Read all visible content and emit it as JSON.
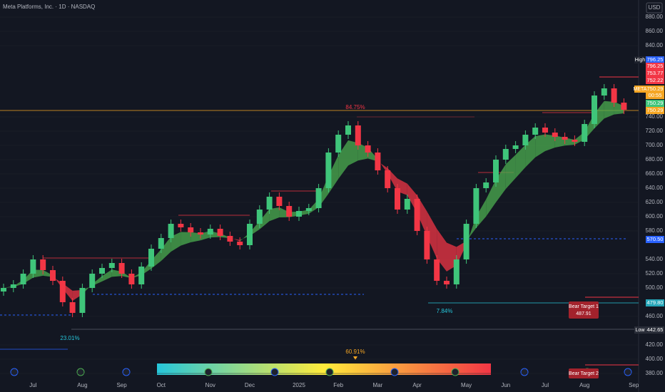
{
  "chart_data": {
    "type": "candlestick",
    "title": "Meta Platforms, Inc. · 1D · NASDAQ",
    "currency": "USD",
    "categories": [
      null,
      null,
      null,
      "Jul",
      null,
      null,
      null,
      null,
      "Aug",
      null,
      null,
      null,
      "Sep",
      null,
      null,
      null,
      "Oct",
      null,
      null,
      null,
      null,
      "Nov",
      null,
      null,
      null,
      "Dec",
      null,
      null,
      null,
      null,
      "2025",
      null,
      null,
      null,
      "Feb",
      null,
      null,
      null,
      "Mar",
      null,
      null,
      null,
      "Apr",
      null,
      null,
      null,
      null,
      "May",
      null,
      null,
      null,
      "Jun",
      null,
      null,
      null,
      "Jul",
      null,
      null,
      null,
      "Aug",
      null,
      null,
      null,
      null,
      "Sep"
    ],
    "open": [
      495,
      500,
      505,
      520,
      540,
      525,
      510,
      480,
      465,
      500,
      520,
      528,
      535,
      520,
      505,
      530,
      555,
      570,
      590,
      585,
      578,
      575,
      583,
      573,
      565,
      560,
      590,
      610,
      628,
      615,
      600,
      608,
      612,
      640,
      690,
      715,
      728,
      700,
      690,
      665,
      640,
      610,
      625,
      580,
      540,
      510,
      505,
      540,
      590,
      640,
      648,
      680,
      695,
      700,
      715,
      725,
      718,
      712,
      708,
      705,
      730,
      770,
      780,
      760,
      null
    ],
    "high": [
      506,
      511,
      526,
      546,
      546,
      531,
      516,
      486,
      506,
      526,
      534,
      541,
      541,
      526,
      536,
      561,
      576,
      596,
      596,
      591,
      584,
      589,
      589,
      579,
      571,
      596,
      616,
      634,
      634,
      621,
      614,
      618,
      646,
      696,
      721,
      734,
      734,
      706,
      696,
      671,
      646,
      631,
      631,
      586,
      546,
      516,
      546,
      596,
      646,
      654,
      686,
      701,
      706,
      721,
      731,
      731,
      724,
      718,
      714,
      736,
      776,
      786,
      786,
      766,
      null
    ],
    "low": [
      489,
      494,
      499,
      514,
      519,
      504,
      474,
      459,
      459,
      494,
      514,
      522,
      514,
      499,
      499,
      524,
      549,
      564,
      579,
      572,
      569,
      569,
      567,
      559,
      554,
      554,
      584,
      604,
      609,
      594,
      594,
      602,
      606,
      634,
      684,
      709,
      694,
      684,
      659,
      634,
      604,
      604,
      574,
      534,
      504,
      499,
      499,
      534,
      584,
      634,
      642,
      674,
      689,
      694,
      709,
      712,
      706,
      702,
      699,
      699,
      724,
      764,
      754,
      744,
      null
    ],
    "close": [
      500,
      505,
      520,
      540,
      525,
      510,
      480,
      465,
      500,
      520,
      528,
      535,
      520,
      505,
      530,
      555,
      570,
      590,
      585,
      578,
      575,
      583,
      573,
      565,
      560,
      590,
      610,
      628,
      615,
      600,
      608,
      612,
      640,
      690,
      715,
      728,
      700,
      690,
      665,
      640,
      610,
      625,
      580,
      540,
      510,
      505,
      540,
      590,
      640,
      648,
      680,
      695,
      700,
      715,
      725,
      718,
      712,
      708,
      705,
      730,
      770,
      780,
      760,
      750,
      null
    ],
    "up_color": "#3fc57a",
    "down_color": "#f23645",
    "ylim": [
      354,
      904
    ],
    "yticks": [
      {
        "value": 880,
        "label": "880.00"
      },
      {
        "value": 860,
        "label": "860.00"
      },
      {
        "value": 840,
        "label": "840.00"
      },
      {
        "value": 740,
        "label": "740.00"
      },
      {
        "value": 720,
        "label": "720.00"
      },
      {
        "value": 700,
        "label": "700.00"
      },
      {
        "value": 680,
        "label": "680.00"
      },
      {
        "value": 660,
        "label": "660.00"
      },
      {
        "value": 640,
        "label": "640.00"
      },
      {
        "value": 620,
        "label": "620.00"
      },
      {
        "value": 600,
        "label": "600.00"
      },
      {
        "value": 580,
        "label": "580.00"
      },
      {
        "value": 540,
        "label": "540.00"
      },
      {
        "value": 520,
        "label": "520.00"
      },
      {
        "value": 500,
        "label": "500.00"
      },
      {
        "value": 460,
        "label": "460.00"
      },
      {
        "value": 420,
        "label": "420.00"
      },
      {
        "value": 400,
        "label": "400.00"
      },
      {
        "value": 380,
        "label": "380.00"
      }
    ],
    "grid": true,
    "axis_tags": [
      {
        "name": "High",
        "text": "796.25"
      },
      {
        "text": "796.25"
      },
      {
        "text": "753.77"
      },
      {
        "text": "752.22"
      },
      {
        "name": "META",
        "text": "750.29"
      },
      {
        "text": "00:55"
      },
      {
        "text": "750.29"
      },
      {
        "text": "750.29"
      },
      {
        "text": "570.50"
      },
      {
        "text": "479.80"
      },
      {
        "name": "Low",
        "text": "442.65"
      }
    ],
    "annotations": [
      "84.75%",
      "23.01%",
      "7.84%",
      "60.91%"
    ],
    "targets": [
      {
        "label": "Bear Target 1",
        "text": "487.91"
      },
      {
        "label": "Bear Target 2"
      }
    ]
  }
}
